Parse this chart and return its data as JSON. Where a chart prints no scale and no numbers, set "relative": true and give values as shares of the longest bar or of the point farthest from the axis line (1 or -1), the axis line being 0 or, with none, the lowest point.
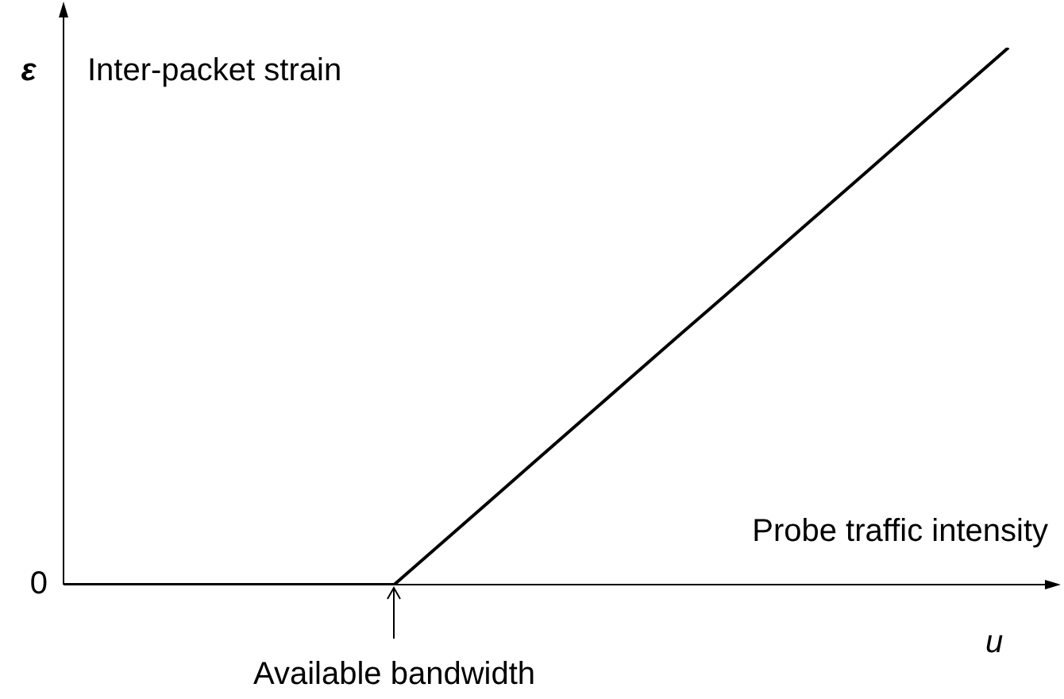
{
  "chart_data": {
    "type": "line",
    "relative": true,
    "xlabel": "u",
    "ylabel": "ε",
    "categories": [
      null,
      null,
      null,
      null,
      null,
      null,
      null,
      null,
      null,
      null,
      null,
      null,
      null,
      null,
      null,
      null,
      null,
      null,
      null,
      null,
      null
    ],
    "series": [
      {
        "color": "#000000",
        "values": [
          0,
          0,
          0,
          0,
          0,
          0,
          0,
          0,
          0.077,
          0.154,
          0.231,
          0.308,
          0.385,
          0.462,
          0.538,
          0.615,
          0.692,
          0.769,
          0.846,
          0.923,
          1
        ]
      }
    ],
    "annotations": [
      "Inter-packet strain",
      "Probe traffic intensity",
      "0",
      {
        "text": "Available bandwidth",
        "y": 0
      }
    ],
    "legend": false
  }
}
